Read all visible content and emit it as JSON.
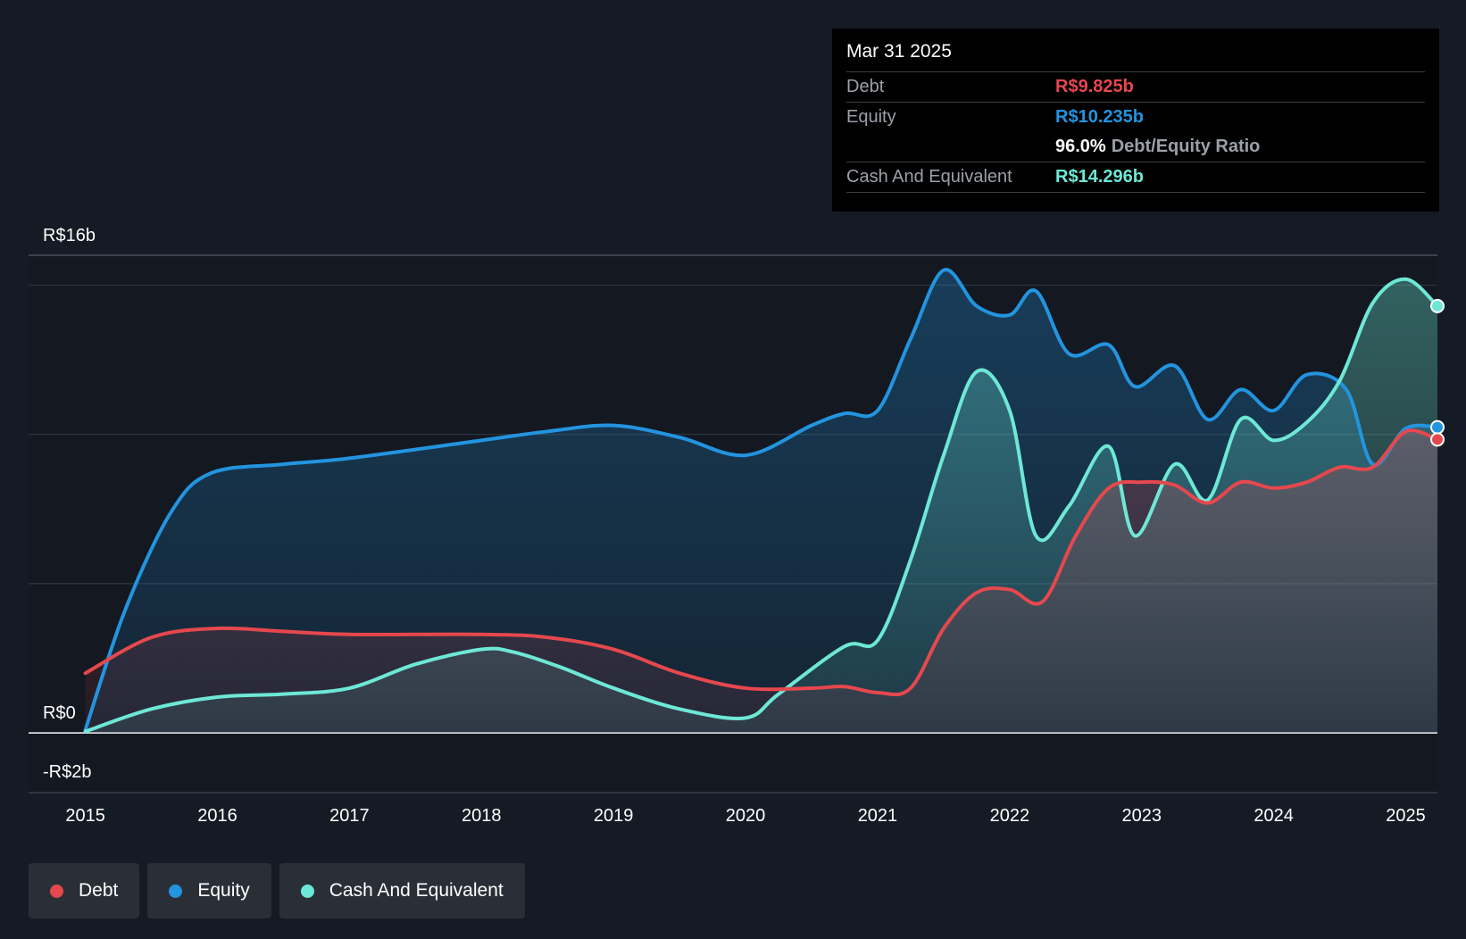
{
  "tooltip": {
    "date": "Mar 31 2025",
    "debt_label": "Debt",
    "debt_value": "R$9.825b",
    "equity_label": "Equity",
    "equity_value": "R$10.235b",
    "ratio_value": "96.0%",
    "ratio_label": "Debt/Equity Ratio",
    "cash_label": "Cash And Equivalent",
    "cash_value": "R$14.296b"
  },
  "legend": {
    "debt": "Debt",
    "equity": "Equity",
    "cash": "Cash And Equivalent"
  },
  "colors": {
    "debt": "#e5484d",
    "equity": "#2394df",
    "cash": "#6ee8d6",
    "background": "#151b24"
  },
  "chart_data": {
    "type": "area",
    "title": "",
    "ylabel": "",
    "xlabel": "",
    "ylim": [
      -2,
      16
    ],
    "y_tick_labels": [
      {
        "value": 16,
        "label": "R$16b"
      },
      {
        "value": 0,
        "label": "R$0"
      },
      {
        "value": -2,
        "label": "-R$2b"
      }
    ],
    "x_ticks": [
      "2015",
      "2016",
      "2017",
      "2018",
      "2019",
      "2020",
      "2021",
      "2022",
      "2023",
      "2024",
      "2025"
    ],
    "x_range": [
      2014.57,
      2025.24
    ],
    "series": [
      {
        "name": "Equity",
        "key": "equity",
        "points": [
          [
            2015.0,
            0.1
          ],
          [
            2015.3,
            4.1
          ],
          [
            2015.65,
            7.4
          ],
          [
            2015.95,
            8.7
          ],
          [
            2016.5,
            9.0
          ],
          [
            2017.0,
            9.2
          ],
          [
            2018.0,
            9.8
          ],
          [
            2018.5,
            10.1
          ],
          [
            2019.0,
            10.3
          ],
          [
            2019.5,
            9.9
          ],
          [
            2020.0,
            9.3
          ],
          [
            2020.5,
            10.3
          ],
          [
            2020.75,
            10.7
          ],
          [
            2021.0,
            10.8
          ],
          [
            2021.25,
            13.2
          ],
          [
            2021.5,
            15.5
          ],
          [
            2021.75,
            14.3
          ],
          [
            2022.0,
            14.0
          ],
          [
            2022.2,
            14.8
          ],
          [
            2022.45,
            12.7
          ],
          [
            2022.75,
            13.0
          ],
          [
            2022.95,
            11.6
          ],
          [
            2023.25,
            12.3
          ],
          [
            2023.5,
            10.5
          ],
          [
            2023.75,
            11.5
          ],
          [
            2024.0,
            10.8
          ],
          [
            2024.25,
            12.0
          ],
          [
            2024.55,
            11.5
          ],
          [
            2024.75,
            9.0
          ],
          [
            2025.0,
            10.2
          ],
          [
            2025.24,
            10.24
          ]
        ]
      },
      {
        "name": "Cash And Equivalent",
        "key": "cash",
        "points": [
          [
            2015.0,
            0.05
          ],
          [
            2015.5,
            0.8
          ],
          [
            2016.0,
            1.2
          ],
          [
            2016.5,
            1.3
          ],
          [
            2017.0,
            1.5
          ],
          [
            2017.5,
            2.3
          ],
          [
            2018.0,
            2.8
          ],
          [
            2018.25,
            2.7
          ],
          [
            2018.6,
            2.2
          ],
          [
            2019.0,
            1.5
          ],
          [
            2019.5,
            0.8
          ],
          [
            2020.0,
            0.5
          ],
          [
            2020.25,
            1.3
          ],
          [
            2020.75,
            2.9
          ],
          [
            2021.0,
            3.1
          ],
          [
            2021.25,
            5.8
          ],
          [
            2021.5,
            9.3
          ],
          [
            2021.75,
            12.1
          ],
          [
            2022.0,
            10.8
          ],
          [
            2022.2,
            6.6
          ],
          [
            2022.45,
            7.6
          ],
          [
            2022.75,
            9.6
          ],
          [
            2022.95,
            6.6
          ],
          [
            2023.25,
            9.0
          ],
          [
            2023.5,
            7.8
          ],
          [
            2023.75,
            10.5
          ],
          [
            2024.0,
            9.8
          ],
          [
            2024.25,
            10.4
          ],
          [
            2024.5,
            11.8
          ],
          [
            2024.75,
            14.4
          ],
          [
            2025.0,
            15.2
          ],
          [
            2025.24,
            14.3
          ]
        ]
      },
      {
        "name": "Debt",
        "key": "debt",
        "points": [
          [
            2015.0,
            2.0
          ],
          [
            2015.5,
            3.2
          ],
          [
            2016.0,
            3.5
          ],
          [
            2016.5,
            3.4
          ],
          [
            2017.0,
            3.3
          ],
          [
            2018.0,
            3.3
          ],
          [
            2018.5,
            3.2
          ],
          [
            2019.0,
            2.8
          ],
          [
            2019.5,
            2.0
          ],
          [
            2020.0,
            1.5
          ],
          [
            2020.5,
            1.5
          ],
          [
            2020.75,
            1.55
          ],
          [
            2021.0,
            1.35
          ],
          [
            2021.25,
            1.5
          ],
          [
            2021.5,
            3.5
          ],
          [
            2021.75,
            4.7
          ],
          [
            2022.0,
            4.8
          ],
          [
            2022.25,
            4.4
          ],
          [
            2022.5,
            6.6
          ],
          [
            2022.75,
            8.2
          ],
          [
            2023.0,
            8.4
          ],
          [
            2023.25,
            8.3
          ],
          [
            2023.5,
            7.7
          ],
          [
            2023.75,
            8.4
          ],
          [
            2024.0,
            8.2
          ],
          [
            2024.25,
            8.4
          ],
          [
            2024.5,
            8.9
          ],
          [
            2024.75,
            8.9
          ],
          [
            2025.0,
            10.1
          ],
          [
            2025.24,
            9.83
          ]
        ]
      }
    ]
  }
}
